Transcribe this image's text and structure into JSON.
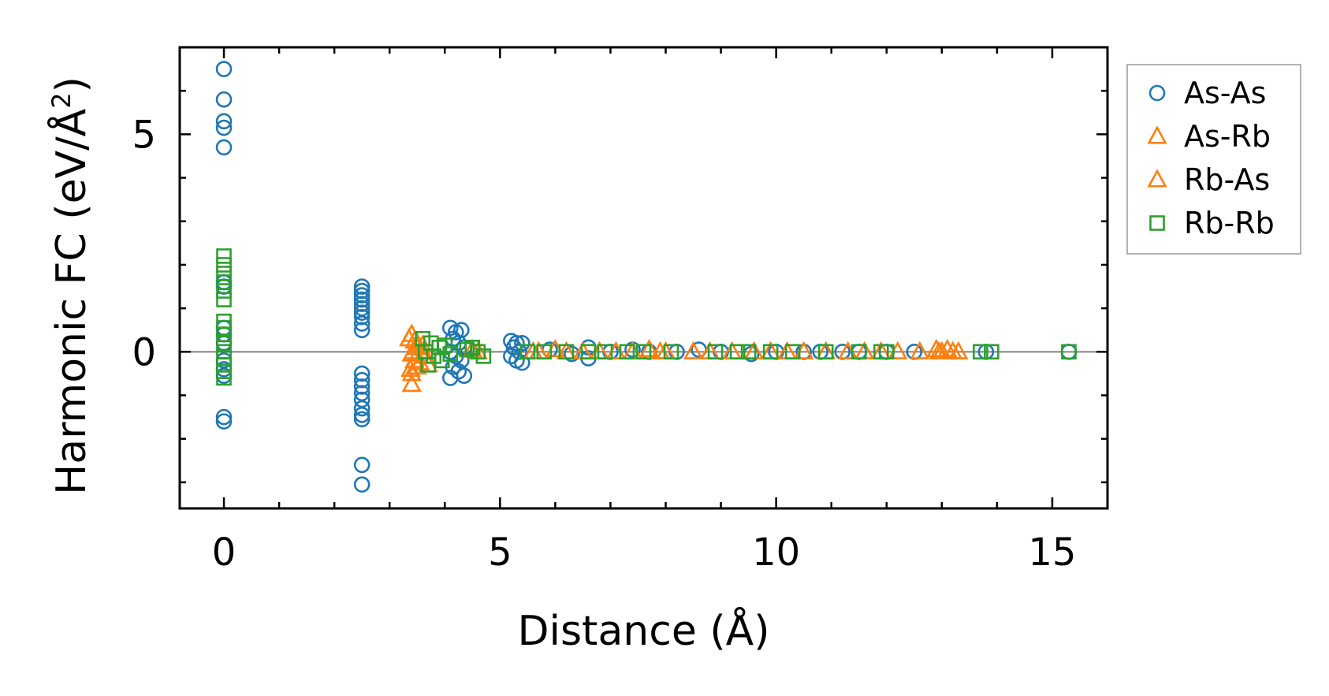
{
  "chart_data": {
    "type": "scatter",
    "xlabel": "Distance (Å)",
    "ylabel_main": "Harmonic FC (eV/Å",
    "ylabel_sup": "2",
    "ylabel_close": ")",
    "xlim": [
      -0.8,
      16.0
    ],
    "ylim": [
      -3.6,
      7.0
    ],
    "xticks": [
      0,
      5,
      10,
      15
    ],
    "xtick_labels": [
      "0",
      "5",
      "10",
      "15"
    ],
    "yticks": [
      0,
      5
    ],
    "ytick_labels": [
      "0",
      "5"
    ],
    "x_minor_step": 1,
    "y_minor_step": 1,
    "zero_line": true,
    "legend_position": "outside-right",
    "series": [
      {
        "name": "As-As",
        "marker": "circle",
        "color": "#1f77b4",
        "points": [
          [
            0,
            6.5
          ],
          [
            0,
            5.8
          ],
          [
            0,
            5.3
          ],
          [
            0,
            5.15
          ],
          [
            0,
            4.7
          ],
          [
            0,
            1.6
          ],
          [
            0,
            1.5
          ],
          [
            0,
            0.55
          ],
          [
            0,
            0.4
          ],
          [
            0,
            0.2
          ],
          [
            0,
            -0.2
          ],
          [
            0,
            -0.4
          ],
          [
            0,
            -0.55
          ],
          [
            0,
            -1.5
          ],
          [
            0,
            -1.6
          ],
          [
            2.5,
            1.5
          ],
          [
            2.5,
            1.4
          ],
          [
            2.5,
            1.3
          ],
          [
            2.5,
            1.2
          ],
          [
            2.5,
            1.1
          ],
          [
            2.5,
            1.0
          ],
          [
            2.5,
            0.9
          ],
          [
            2.5,
            0.8
          ],
          [
            2.5,
            0.65
          ],
          [
            2.5,
            0.5
          ],
          [
            2.5,
            -0.5
          ],
          [
            2.5,
            -0.65
          ],
          [
            2.5,
            -0.8
          ],
          [
            2.5,
            -0.95
          ],
          [
            2.5,
            -1.1
          ],
          [
            2.5,
            -1.3
          ],
          [
            2.5,
            -1.45
          ],
          [
            2.5,
            -1.55
          ],
          [
            2.5,
            -2.6
          ],
          [
            2.5,
            -3.05
          ],
          [
            4.1,
            0.55
          ],
          [
            4.2,
            0.45
          ],
          [
            4.3,
            0.5
          ],
          [
            4.15,
            0.3
          ],
          [
            4.25,
            0.2
          ],
          [
            4.35,
            0.1
          ],
          [
            4.1,
            0.0
          ],
          [
            4.2,
            -0.1
          ],
          [
            4.3,
            -0.2
          ],
          [
            4.15,
            -0.35
          ],
          [
            4.25,
            -0.45
          ],
          [
            4.35,
            -0.55
          ],
          [
            4.1,
            -0.6
          ],
          [
            5.2,
            0.25
          ],
          [
            5.3,
            0.2
          ],
          [
            5.4,
            0.2
          ],
          [
            5.25,
            0.1
          ],
          [
            5.35,
            0.0
          ],
          [
            5.2,
            -0.1
          ],
          [
            5.3,
            -0.2
          ],
          [
            5.4,
            -0.25
          ],
          [
            5.9,
            0.05
          ],
          [
            6.3,
            -0.05
          ],
          [
            6.6,
            -0.15
          ],
          [
            6.6,
            0.1
          ],
          [
            7.0,
            0.0
          ],
          [
            7.4,
            0.05
          ],
          [
            7.7,
            0.0
          ],
          [
            8.2,
            0.0
          ],
          [
            8.6,
            0.05
          ],
          [
            9.0,
            0.0
          ],
          [
            9.55,
            -0.05
          ],
          [
            10.0,
            0.0
          ],
          [
            10.5,
            0.0
          ],
          [
            10.8,
            0.0
          ],
          [
            11.2,
            0.0
          ],
          [
            11.5,
            0.0
          ],
          [
            12.0,
            0.0
          ],
          [
            12.5,
            0.0
          ],
          [
            13.8,
            0.0
          ],
          [
            15.3,
            0.0
          ]
        ]
      },
      {
        "name": "As-Rb",
        "marker": "triangle",
        "color": "#ff7f0e",
        "points": [
          [
            3.4,
            0.4
          ],
          [
            3.45,
            0.25
          ],
          [
            3.5,
            0.1
          ],
          [
            3.4,
            -0.05
          ],
          [
            3.45,
            -0.2
          ],
          [
            3.5,
            -0.35
          ],
          [
            3.4,
            -0.5
          ],
          [
            3.6,
            0.15
          ],
          [
            3.65,
            -0.1
          ],
          [
            4.5,
            0.05
          ],
          [
            5.6,
            0.0
          ],
          [
            6.0,
            0.05
          ],
          [
            6.5,
            0.0
          ],
          [
            7.1,
            0.0
          ],
          [
            7.7,
            0.05
          ],
          [
            8.0,
            0.0
          ],
          [
            8.8,
            0.0
          ],
          [
            9.6,
            0.0
          ],
          [
            10.2,
            0.0
          ],
          [
            10.9,
            0.0
          ],
          [
            11.6,
            0.0
          ],
          [
            12.2,
            0.0
          ],
          [
            12.9,
            0.05
          ],
          [
            13.0,
            0.0
          ],
          [
            13.1,
            0.05
          ],
          [
            13.2,
            0.0
          ]
        ]
      },
      {
        "name": "Rb-As",
        "marker": "triangle",
        "color": "#ff7f0e",
        "points": [
          [
            3.35,
            0.3
          ],
          [
            3.5,
            0.2
          ],
          [
            3.42,
            0.0
          ],
          [
            3.55,
            -0.25
          ],
          [
            3.38,
            -0.4
          ],
          [
            3.4,
            -0.75
          ],
          [
            3.7,
            -0.3
          ],
          [
            4.6,
            0.0
          ],
          [
            5.7,
            0.0
          ],
          [
            6.2,
            0.0
          ],
          [
            6.8,
            0.0
          ],
          [
            7.4,
            0.0
          ],
          [
            7.9,
            0.0
          ],
          [
            8.5,
            0.0
          ],
          [
            9.2,
            0.0
          ],
          [
            9.9,
            0.0
          ],
          [
            10.5,
            0.0
          ],
          [
            11.3,
            0.0
          ],
          [
            11.9,
            0.0
          ],
          [
            12.6,
            0.0
          ],
          [
            12.95,
            0.0
          ],
          [
            13.3,
            0.0
          ]
        ]
      },
      {
        "name": "Rb-Rb",
        "marker": "square",
        "color": "#2ca02c",
        "points": [
          [
            0,
            2.2
          ],
          [
            0,
            2.0
          ],
          [
            0,
            1.8
          ],
          [
            0,
            1.6
          ],
          [
            0,
            1.4
          ],
          [
            0,
            1.2
          ],
          [
            0,
            0.7
          ],
          [
            0,
            0.55
          ],
          [
            0,
            0.4
          ],
          [
            0,
            0.2
          ],
          [
            0,
            0.0
          ],
          [
            0,
            -0.15
          ],
          [
            0,
            -0.3
          ],
          [
            0,
            -0.45
          ],
          [
            0,
            -0.6
          ],
          [
            3.6,
            0.3
          ],
          [
            3.75,
            0.2
          ],
          [
            3.9,
            0.1
          ],
          [
            3.65,
            0.0
          ],
          [
            3.8,
            -0.1
          ],
          [
            3.95,
            -0.2
          ],
          [
            3.7,
            -0.3
          ],
          [
            4.0,
            0.15
          ],
          [
            4.1,
            -0.05
          ],
          [
            4.5,
            0.1
          ],
          [
            4.6,
            0.0
          ],
          [
            4.7,
            -0.1
          ],
          [
            4.4,
            0.05
          ],
          [
            5.5,
            0.0
          ],
          [
            5.8,
            0.0
          ],
          [
            6.2,
            0.0
          ],
          [
            6.6,
            0.0
          ],
          [
            6.9,
            0.0
          ],
          [
            7.3,
            0.0
          ],
          [
            7.6,
            0.0
          ],
          [
            8.1,
            0.0
          ],
          [
            8.9,
            0.0
          ],
          [
            9.3,
            0.0
          ],
          [
            9.5,
            0.0
          ],
          [
            9.9,
            0.0
          ],
          [
            10.3,
            0.0
          ],
          [
            10.9,
            0.0
          ],
          [
            11.5,
            0.0
          ],
          [
            11.9,
            0.0
          ],
          [
            12.0,
            0.0
          ],
          [
            13.7,
            0.0
          ],
          [
            13.9,
            0.0
          ],
          [
            15.3,
            0.0
          ]
        ]
      }
    ]
  }
}
